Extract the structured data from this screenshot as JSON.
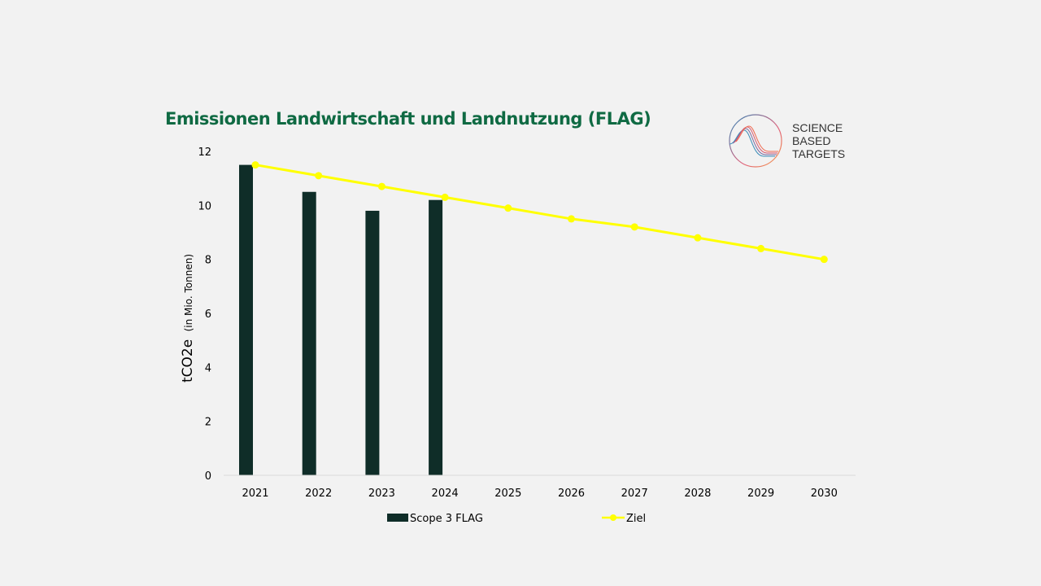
{
  "chart_data": {
    "type": "bar",
    "title": "Emissionen Landwirtschaft und Landnutzung (FLAG)",
    "xlabel": "",
    "ylabel_main": "tCO2e",
    "ylabel_sub": "(in Mio. Tonnen)",
    "ylim": [
      0,
      12
    ],
    "yticks": [
      0,
      2,
      4,
      6,
      8,
      10,
      12
    ],
    "categories": [
      "2021",
      "2022",
      "2023",
      "2024",
      "2025",
      "2026",
      "2027",
      "2028",
      "2029",
      "2030"
    ],
    "series": [
      {
        "name": "Scope 3 FLAG",
        "type": "bar",
        "color": "#0f2d28",
        "values": [
          11.5,
          10.5,
          9.8,
          10.2,
          null,
          null,
          null,
          null,
          null,
          null
        ]
      },
      {
        "name": "Ziel",
        "type": "line",
        "color": "#ffff00",
        "values": [
          11.5,
          11.1,
          10.7,
          10.3,
          9.9,
          9.5,
          9.2,
          8.8,
          8.4,
          8.0
        ]
      }
    ],
    "grid": false,
    "legend": "bottom"
  },
  "logo": {
    "lines": [
      "SCIENCE",
      "BASED",
      "TARGETS"
    ]
  }
}
